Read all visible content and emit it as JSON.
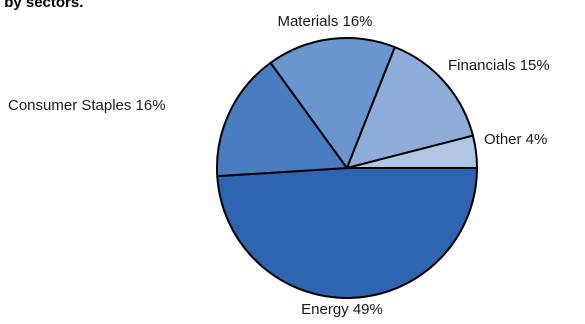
{
  "chart_data": {
    "type": "pie",
    "title": "cks by sectors.",
    "slices": [
      {
        "label": "Energy",
        "value": 49,
        "text": "Energy 49%",
        "color": "#2e64b0"
      },
      {
        "label": "Consumer Staples",
        "value": 16,
        "text": "Consumer Staples 16%",
        "color": "#4a7cc1"
      },
      {
        "label": "Materials",
        "value": 16,
        "text": "Materials 16%",
        "color": "#6b95cf"
      },
      {
        "label": "Financials",
        "value": 15,
        "text": "Financials 15%",
        "color": "#8eadd8"
      },
      {
        "label": "Other",
        "value": 4,
        "text": "Other 4%",
        "color": "#b1c6e3"
      }
    ],
    "start_angle_deg": 0,
    "direction": "clockwise",
    "legend": "none",
    "grid": false
  }
}
